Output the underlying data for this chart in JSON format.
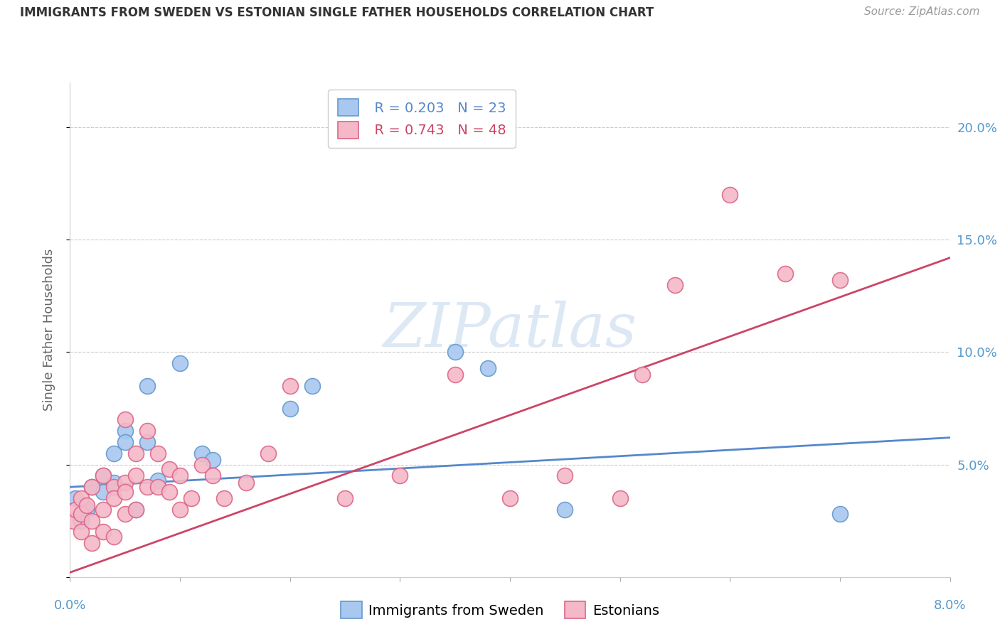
{
  "title": "IMMIGRANTS FROM SWEDEN VS ESTONIAN SINGLE FATHER HOUSEHOLDS CORRELATION CHART",
  "source": "Source: ZipAtlas.com",
  "ylabel": "Single Father Households",
  "watermark": "ZIPatlas",
  "legend_blue_r": "R = 0.203",
  "legend_blue_n": "N = 23",
  "legend_pink_r": "R = 0.743",
  "legend_pink_n": "N = 48",
  "legend_blue_label": "Immigrants from Sweden",
  "legend_pink_label": "Estonians",
  "blue_color": "#a8c8f0",
  "pink_color": "#f4b8c8",
  "blue_edge_color": "#6699cc",
  "pink_edge_color": "#dd6688",
  "blue_line_color": "#5588cc",
  "pink_line_color": "#cc4466",
  "blue_scatter": [
    [
      0.0005,
      3.5
    ],
    [
      0.001,
      2.5
    ],
    [
      0.0015,
      3.0
    ],
    [
      0.002,
      4.0
    ],
    [
      0.003,
      4.5
    ],
    [
      0.003,
      3.8
    ],
    [
      0.004,
      5.5
    ],
    [
      0.004,
      4.2
    ],
    [
      0.005,
      6.5
    ],
    [
      0.005,
      6.0
    ],
    [
      0.006,
      3.0
    ],
    [
      0.007,
      8.5
    ],
    [
      0.007,
      6.0
    ],
    [
      0.008,
      4.3
    ],
    [
      0.01,
      9.5
    ],
    [
      0.012,
      5.5
    ],
    [
      0.013,
      5.2
    ],
    [
      0.02,
      7.5
    ],
    [
      0.022,
      8.5
    ],
    [
      0.035,
      10.0
    ],
    [
      0.038,
      9.3
    ],
    [
      0.045,
      3.0
    ],
    [
      0.07,
      2.8
    ]
  ],
  "pink_scatter": [
    [
      0.0003,
      2.5
    ],
    [
      0.0005,
      3.0
    ],
    [
      0.001,
      2.8
    ],
    [
      0.001,
      3.5
    ],
    [
      0.001,
      2.0
    ],
    [
      0.0015,
      3.2
    ],
    [
      0.002,
      4.0
    ],
    [
      0.002,
      1.5
    ],
    [
      0.002,
      2.5
    ],
    [
      0.003,
      4.5
    ],
    [
      0.003,
      3.0
    ],
    [
      0.003,
      2.0
    ],
    [
      0.004,
      4.0
    ],
    [
      0.004,
      3.5
    ],
    [
      0.004,
      1.8
    ],
    [
      0.005,
      4.2
    ],
    [
      0.005,
      3.8
    ],
    [
      0.005,
      2.8
    ],
    [
      0.005,
      7.0
    ],
    [
      0.006,
      4.5
    ],
    [
      0.006,
      5.5
    ],
    [
      0.006,
      3.0
    ],
    [
      0.007,
      4.0
    ],
    [
      0.007,
      6.5
    ],
    [
      0.008,
      5.5
    ],
    [
      0.008,
      4.0
    ],
    [
      0.009,
      4.8
    ],
    [
      0.009,
      3.8
    ],
    [
      0.01,
      3.0
    ],
    [
      0.01,
      4.5
    ],
    [
      0.011,
      3.5
    ],
    [
      0.012,
      5.0
    ],
    [
      0.013,
      4.5
    ],
    [
      0.014,
      3.5
    ],
    [
      0.016,
      4.2
    ],
    [
      0.018,
      5.5
    ],
    [
      0.02,
      8.5
    ],
    [
      0.025,
      3.5
    ],
    [
      0.03,
      4.5
    ],
    [
      0.035,
      9.0
    ],
    [
      0.04,
      3.5
    ],
    [
      0.045,
      4.5
    ],
    [
      0.05,
      3.5
    ],
    [
      0.052,
      9.0
    ],
    [
      0.055,
      13.0
    ],
    [
      0.06,
      17.0
    ],
    [
      0.065,
      13.5
    ],
    [
      0.07,
      13.2
    ]
  ],
  "xlim": [
    0,
    0.08
  ],
  "ylim": [
    0,
    22
  ],
  "blue_trend_x": [
    0,
    0.08
  ],
  "blue_trend_y": [
    4.0,
    6.2
  ],
  "pink_trend_x": [
    0,
    0.08
  ],
  "pink_trend_y": [
    0.2,
    14.2
  ],
  "background_color": "#ffffff",
  "grid_color": "#cccccc",
  "title_fontsize": 12,
  "source_fontsize": 11,
  "legend_fontsize": 14,
  "axis_label_fontsize": 13,
  "tick_fontsize": 13
}
